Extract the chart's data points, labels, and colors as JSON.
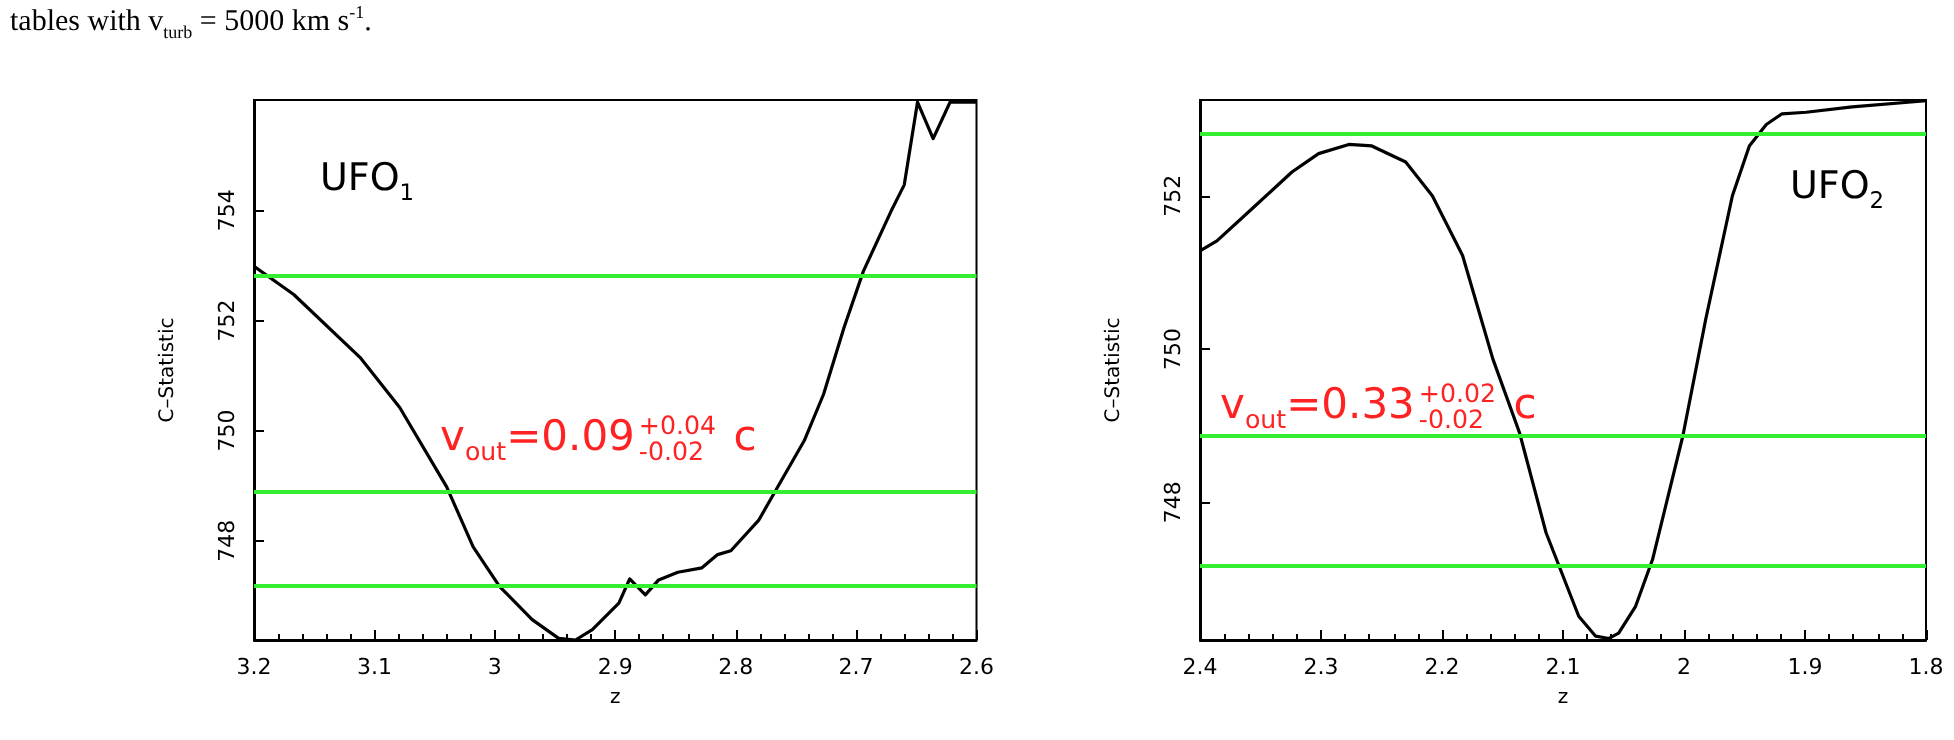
{
  "chart_data": [
    {
      "type": "line",
      "xlabel": "z",
      "ylabel": "C–Statistic",
      "xlim": [
        3.2,
        2.6
      ],
      "xticks": [
        3.2,
        3.1,
        3,
        2.9,
        2.8,
        2.7,
        2.6
      ],
      "ylim": [
        746.2,
        756
      ],
      "yticks": [
        748,
        750,
        752,
        754
      ],
      "grid": false,
      "marker": "none",
      "line_style": "solid",
      "annotations": [
        "tables with v$_{turb}$ = 5000 km s$^{-1}$.",
        "UFO$_{1}$",
        "v$_{out}$=0.09$^{+0.04}$$_{-0.02}$ c"
      ],
      "ref_lines": [
        {
          "axis": "y",
          "value": 752.8,
          "color": "#33ee33"
        },
        {
          "axis": "y",
          "value": 748.88,
          "color": "#33ee33"
        },
        {
          "axis": "y",
          "value": 747.18,
          "color": "#33ee33"
        }
      ],
      "series": [
        {
          "color": "#000000",
          "x": [
            3.2,
            3.167,
            3.112,
            3.079,
            3.04,
            3.018,
            2.996,
            2.969,
            2.947,
            2.933,
            2.919,
            2.897,
            2.888,
            2.875,
            2.864,
            2.848,
            2.828,
            2.815,
            2.804,
            2.781,
            2.765,
            2.743,
            2.727,
            2.71,
            2.694,
            2.671,
            2.66,
            2.649,
            2.636,
            2.622,
            2.6
          ],
          "values": [
            752.98,
            752.47,
            751.33,
            750.42,
            748.98,
            747.89,
            747.17,
            746.57,
            746.23,
            746.2,
            746.39,
            746.87,
            747.31,
            747.02,
            747.29,
            747.43,
            747.51,
            747.75,
            747.82,
            748.37,
            748.98,
            749.82,
            750.66,
            751.87,
            752.89,
            753.98,
            754.46,
            755.96,
            755.3,
            755.96,
            755.96
          ]
        }
      ]
    },
    {
      "type": "line",
      "xlabel": "z",
      "ylabel": "C–Statistic",
      "xlim": [
        2.4,
        1.8
      ],
      "xticks": [
        2.4,
        2.3,
        2.2,
        2.1,
        2,
        1.9,
        1.8
      ],
      "ylim": [
        746.2,
        753.25
      ],
      "yticks": [
        748,
        750,
        752
      ],
      "grid": false,
      "marker": "none",
      "line_style": "solid",
      "annotations": [
        "UFO$_{2}$",
        "v$_{out}$=0.33$^{+0.02}$$_{-0.02}$ c"
      ],
      "ref_lines": [
        {
          "axis": "y",
          "value": 752.8,
          "color": "#33ee33"
        },
        {
          "axis": "y",
          "value": 748.88,
          "color": "#33ee33"
        },
        {
          "axis": "y",
          "value": 747.18,
          "color": "#33ee33"
        }
      ],
      "series": [
        {
          "color": "#000000",
          "x": [
            2.4,
            2.386,
            2.357,
            2.324,
            2.302,
            2.277,
            2.258,
            2.23,
            2.208,
            2.183,
            2.158,
            2.136,
            2.114,
            2.087,
            2.073,
            2.062,
            2.054,
            2.04,
            2.026,
            2.001,
            1.982,
            1.96,
            1.946,
            1.932,
            1.919,
            1.899,
            1.861,
            1.8
          ],
          "values": [
            751.28,
            751.41,
            751.83,
            752.31,
            752.55,
            752.67,
            752.65,
            752.44,
            752.0,
            751.22,
            749.87,
            748.91,
            747.6,
            746.51,
            746.25,
            746.22,
            746.29,
            746.64,
            747.25,
            748.86,
            750.39,
            752.0,
            752.65,
            752.93,
            753.07,
            753.09,
            753.16,
            753.24
          ]
        }
      ]
    }
  ]
}
